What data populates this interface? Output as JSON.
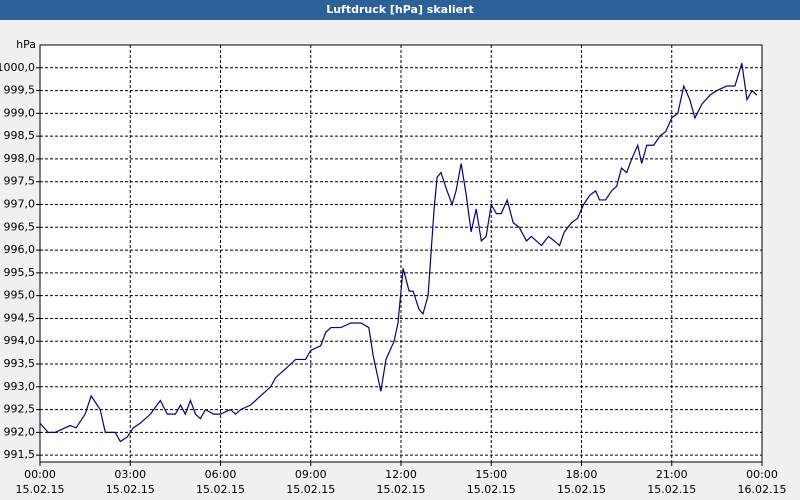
{
  "chart_data": {
    "type": "line",
    "title": "Luftdruck [hPa] skaliert",
    "y_label": "hPa",
    "xlim": [
      0,
      24
    ],
    "xticks": [
      {
        "value": 0,
        "label": "00:00 15.02.15"
      },
      {
        "value": 3,
        "label": "03:00 15.02.15"
      },
      {
        "value": 6,
        "label": "06:00 15.02.15"
      },
      {
        "value": 9,
        "label": "09:00 15.02.15"
      },
      {
        "value": 12,
        "label": "12:00 15.02.15"
      },
      {
        "value": 15,
        "label": "15:00 15.02.15"
      },
      {
        "value": 18,
        "label": "18:00 15.02.15"
      },
      {
        "value": 21,
        "label": "21:00 15.02.15"
      },
      {
        "value": 24,
        "label": "00:00 16.02.15"
      }
    ],
    "ylim": [
      991.35,
      1000.5
    ],
    "yticks": [
      {
        "value": 991.5,
        "label": "991,5"
      },
      {
        "value": 992,
        "label": "992,0"
      },
      {
        "value": 992.5,
        "label": "992,5"
      },
      {
        "value": 993,
        "label": "993,0"
      },
      {
        "value": 993.5,
        "label": "993,5"
      },
      {
        "value": 994,
        "label": "994,0"
      },
      {
        "value": 994.5,
        "label": "994,5"
      },
      {
        "value": 995,
        "label": "995,0"
      },
      {
        "value": 995.5,
        "label": "995,5"
      },
      {
        "value": 996,
        "label": "996,0"
      },
      {
        "value": 996.5,
        "label": "996,5"
      },
      {
        "value": 997,
        "label": "997,0"
      },
      {
        "value": 997.5,
        "label": "997,5"
      },
      {
        "value": 998,
        "label": "998,0"
      },
      {
        "value": 998.5,
        "label": "998,5"
      },
      {
        "value": 999,
        "label": "999,0"
      },
      {
        "value": 999.5,
        "label": "999,5"
      },
      {
        "value": 1000,
        "label": "1000,0"
      }
    ],
    "grid": true,
    "x": [
      0,
      0.27,
      0.5,
      1,
      1.2,
      1.5,
      1.7,
      2,
      2.17,
      2.5,
      2.67,
      2.9,
      3.1,
      3.33,
      3.67,
      4,
      4.23,
      4.5,
      4.67,
      4.83,
      5,
      5.17,
      5.33,
      5.5,
      5.77,
      6,
      6.33,
      6.5,
      6.67,
      7,
      7.33,
      7.67,
      7.83,
      8.17,
      8.5,
      8.83,
      9,
      9.33,
      9.5,
      9.67,
      10,
      10.33,
      10.67,
      10.93,
      11.07,
      11.33,
      11.5,
      11.77,
      11.9,
      12.07,
      12.27,
      12.4,
      12.6,
      12.73,
      12.9,
      13.1,
      13.2,
      13.33,
      13.53,
      13.7,
      13.83,
      14,
      14.17,
      14.33,
      14.5,
      14.67,
      14.83,
      15,
      15.17,
      15.33,
      15.53,
      15.73,
      15.93,
      16.17,
      16.33,
      16.5,
      16.67,
      16.9,
      17.1,
      17.27,
      17.43,
      17.67,
      17.87,
      18.07,
      18.27,
      18.47,
      18.6,
      18.8,
      19,
      19.17,
      19.33,
      19.5,
      19.67,
      19.87,
      20,
      20.17,
      20.4,
      20.6,
      20.8,
      21,
      21.2,
      21.4,
      21.6,
      21.77,
      22,
      22.27,
      22.5,
      22.83,
      23.1,
      23.33,
      23.5,
      23.67,
      23.83
    ],
    "series": [
      {
        "color": "#00008c",
        "values": [
          992.2,
          992.0,
          992.0,
          992.15,
          992.1,
          992.4,
          992.8,
          992.5,
          992.0,
          992.0,
          991.8,
          991.9,
          992.1,
          992.2,
          992.4,
          992.7,
          992.4,
          992.4,
          992.6,
          992.4,
          992.7,
          992.4,
          992.3,
          992.5,
          992.4,
          992.4,
          992.5,
          992.4,
          992.5,
          992.6,
          992.8,
          993.0,
          993.2,
          993.4,
          993.6,
          993.6,
          993.8,
          993.9,
          994.2,
          994.3,
          994.3,
          994.4,
          994.4,
          994.3,
          993.7,
          992.9,
          993.6,
          994.0,
          994.4,
          995.6,
          995.1,
          995.1,
          994.7,
          994.6,
          995.0,
          996.9,
          997.6,
          997.7,
          997.3,
          997.0,
          997.3,
          997.9,
          997.2,
          996.4,
          996.9,
          996.2,
          996.3,
          997.0,
          996.8,
          996.8,
          997.1,
          996.6,
          996.5,
          996.2,
          996.3,
          996.2,
          996.1,
          996.3,
          996.2,
          996.1,
          996.4,
          996.6,
          996.7,
          997.0,
          997.2,
          997.3,
          997.1,
          997.1,
          997.3,
          997.4,
          997.8,
          997.7,
          998.0,
          998.3,
          997.9,
          998.3,
          998.3,
          998.5,
          998.6,
          998.9,
          999.0,
          999.6,
          999.3,
          998.9,
          999.2,
          999.4,
          999.5,
          999.6,
          999.6,
          1000.1,
          999.3,
          999.5,
          999.4
        ]
      }
    ]
  }
}
